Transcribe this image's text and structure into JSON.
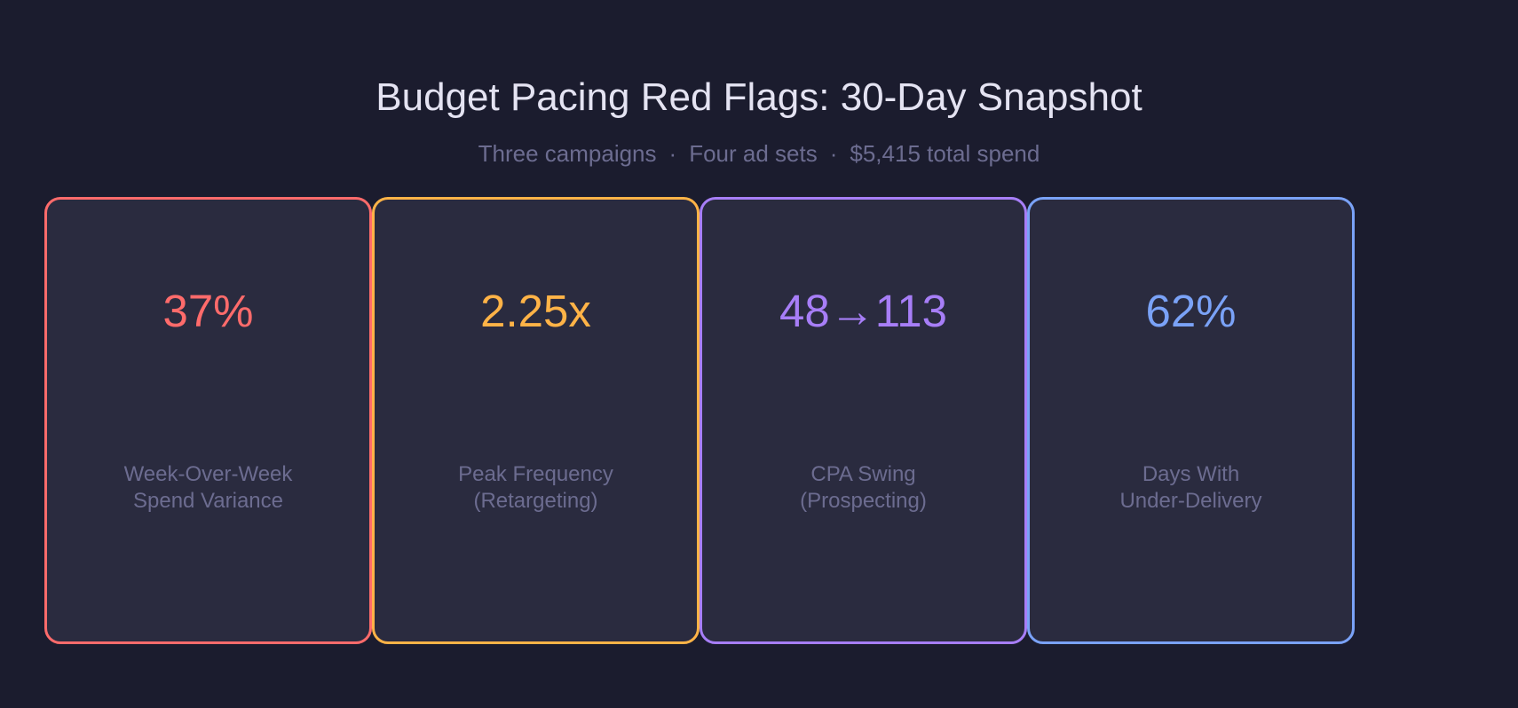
{
  "header": {
    "title": "Budget Pacing Red Flags: 30-Day Snapshot",
    "subtitle_parts": [
      "Three campaigns",
      "Four ad sets",
      "$5,415 total spend"
    ],
    "separator": "·"
  },
  "cards": [
    {
      "value": "37%",
      "label_lines": [
        "Week-Over-Week",
        "Spend Variance"
      ],
      "accent_color": "#ff6b6b"
    },
    {
      "value": "2.25x",
      "label_lines": [
        "Peak Frequency",
        "(Retargeting)"
      ],
      "accent_color": "#ffb347"
    },
    {
      "value": "48→113",
      "label_lines": [
        "CPA Swing",
        "(Prospecting)"
      ],
      "accent_color": "#a77ef7"
    },
    {
      "value": "62%",
      "label_lines": [
        "Days With",
        "Under-Delivery"
      ],
      "accent_color": "#7aa2f7"
    }
  ],
  "colors": {
    "background": "#1b1c2e",
    "card_background": "#2a2b3f",
    "title": "#e4e3f2",
    "muted_text": "#6c6c90"
  }
}
